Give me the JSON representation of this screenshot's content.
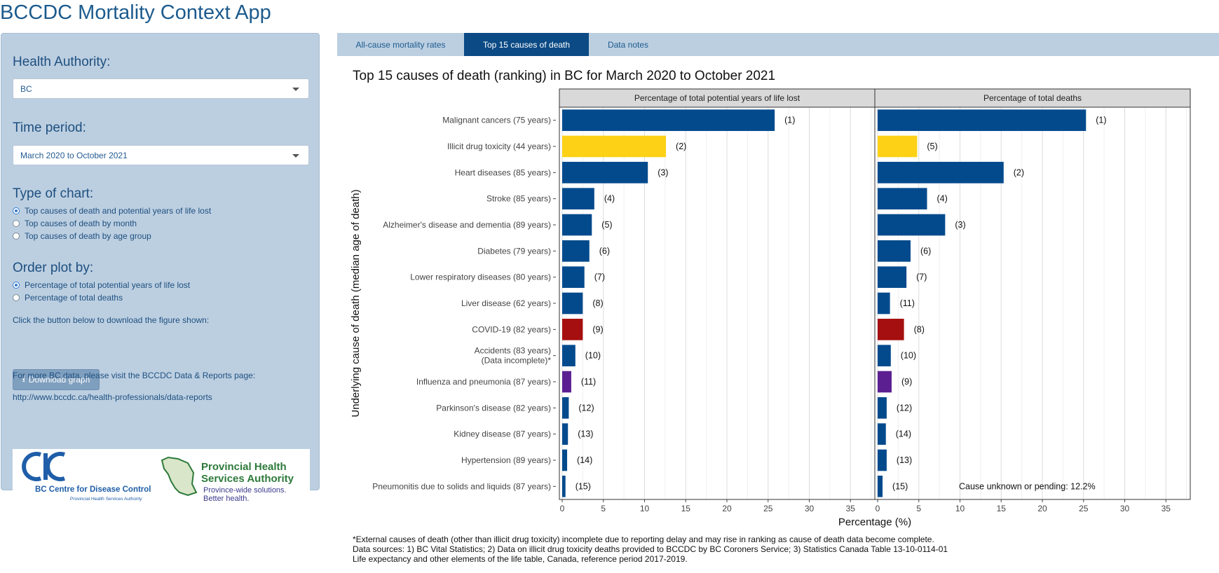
{
  "app": {
    "title": "BCCDC Mortality Context App"
  },
  "sidebar": {
    "health_authority": {
      "label": "Health Authority:",
      "value": "BC"
    },
    "time_period": {
      "label": "Time period:",
      "value": "March 2020 to October 2021"
    },
    "chart_type": {
      "label": "Type of chart:",
      "options": [
        {
          "label": "Top causes of death and potential years of life lost",
          "checked": true
        },
        {
          "label": "Top causes of death by month",
          "checked": false
        },
        {
          "label": "Top causes of death by age group",
          "checked": false
        }
      ]
    },
    "order_by": {
      "label": "Order plot by:",
      "options": [
        {
          "label": "Percentage of total potential years of life lost",
          "checked": true
        },
        {
          "label": "Percentage of total deaths",
          "checked": false
        }
      ]
    },
    "download_prompt": "Click the button below to download the figure shown:",
    "download_label": "Download graph",
    "more_data_text": "For more BC data, please visit the BCCDC Data & Reports page:",
    "link": "http://www.bccdc.ca/health-professionals/data-reports",
    "logos": {
      "bccdc_line1": "BC Centre for Disease Control",
      "bccdc_line2": "Provincial Health Services Authority",
      "phsa_line1": "Provincial Health",
      "phsa_line2": "Services Authority",
      "phsa_tag1": "Province-wide solutions.",
      "phsa_tag2": "Better health."
    }
  },
  "tabs": [
    {
      "label": "All-cause mortality rates",
      "active": false
    },
    {
      "label": "Top 15 causes of death",
      "active": true
    },
    {
      "label": "Data notes",
      "active": false
    }
  ],
  "chart_title": "Top 15 causes of death (ranking) in BC for March 2020 to October 2021",
  "chart_data": {
    "type": "bar",
    "orientation": "horizontal",
    "ylabel": "Underlying cause of death (median age of death)",
    "xlabel": "Percentage (%)",
    "xlim": [
      0,
      38
    ],
    "xticks": [
      0,
      5,
      10,
      15,
      20,
      25,
      30,
      35
    ],
    "categories": [
      "Malignant cancers (75 years)",
      "Illicit drug toxicity (44 years)",
      "Heart diseases (85 years)",
      "Stroke (85 years)",
      "Alzheimer's disease and dementia (89 years)",
      "Diabetes (79 years)",
      "Lower respiratory diseases (80 years)",
      "Liver disease (62 years)",
      "COVID-19 (82 years)",
      "Accidents (83 years)\n(Data incomplete)*",
      "Influenza and pneumonia (87 years)",
      "Parkinson's disease (82 years)",
      "Kidney disease (87 years)",
      "Hypertension (89 years)",
      "Pneumonitis due to solids and liquids (87 years)"
    ],
    "bar_colors": [
      "#034a8d",
      "#fcd116",
      "#034a8d",
      "#034a8d",
      "#034a8d",
      "#034a8d",
      "#034a8d",
      "#034a8d",
      "#a50f0f",
      "#034a8d",
      "#5c1f91",
      "#034a8d",
      "#034a8d",
      "#034a8d",
      "#034a8d"
    ],
    "panels": [
      {
        "title": "Percentage of total potential years of life lost",
        "values": [
          25.8,
          12.6,
          10.4,
          3.9,
          3.6,
          3.3,
          2.7,
          2.5,
          2.5,
          1.6,
          1.1,
          0.8,
          0.7,
          0.6,
          0.4
        ],
        "labels": [
          "(1)",
          "(2)",
          "(3)",
          "(4)",
          "(5)",
          "(6)",
          "(7)",
          "(8)",
          "(9)",
          "(10)",
          "(11)",
          "(12)",
          "(13)",
          "(14)",
          "(15)"
        ]
      },
      {
        "title": "Percentage of total deaths",
        "values": [
          25.3,
          4.8,
          15.3,
          6.0,
          8.2,
          4.0,
          3.5,
          1.5,
          3.2,
          1.6,
          1.7,
          1.1,
          1.0,
          1.1,
          0.6
        ],
        "labels": [
          "(1)",
          "(5)",
          "(2)",
          "(4)",
          "(3)",
          "(6)",
          "(7)",
          "(11)",
          "(8)",
          "(10)",
          "(9)",
          "(12)",
          "(14)",
          "(13)",
          "(15)"
        ],
        "annotation": "Cause unknown or pending: 12.2%"
      }
    ],
    "grid": true
  },
  "footnotes": [
    "*External causes of death (other than illicit drug toxicity) incomplete due to reporting delay and may rise in ranking as cause of death data become complete.",
    "Data sources: 1) BC Vital Statistics; 2) Data on illicit drug toxicity deaths provided to BCCDC by BC Coroners Service; 3) Statistics Canada Table 13-10-0114-01",
    "Life expectancy and other elements of the life table, Canada, reference period 2017-2019."
  ]
}
